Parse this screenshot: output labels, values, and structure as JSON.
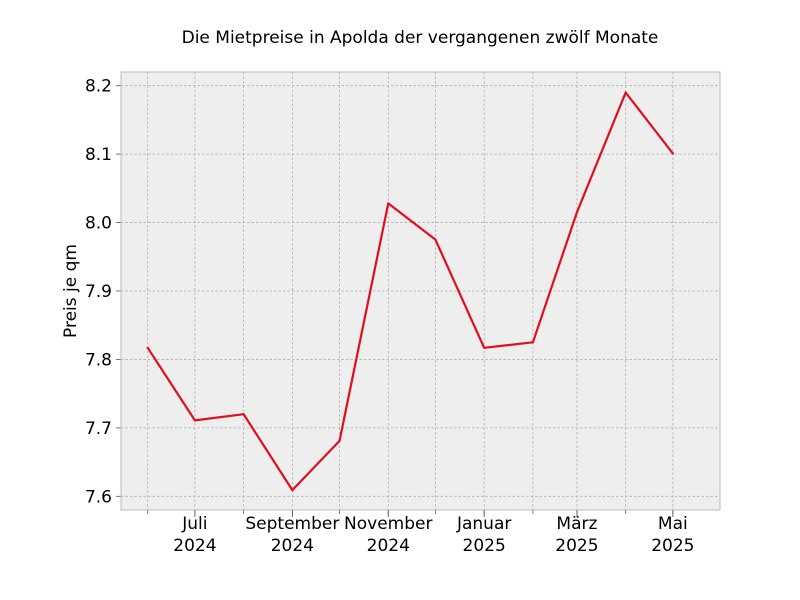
{
  "chart_data": {
    "type": "line",
    "title": "Die Mietpreise in Apolda der vergangenen zwölf Monate",
    "xlabel": "",
    "ylabel": "Preis je qm",
    "x": [
      "2024-06",
      "2024-07",
      "2024-08",
      "2024-09",
      "2024-10",
      "2024-11",
      "2024-12",
      "2025-01",
      "2025-02",
      "2025-03",
      "2025-04",
      "2025-05"
    ],
    "xlim": [
      "2024-05-15",
      "2025-05-31"
    ],
    "x_ticks": [
      {
        "month": "2024-07",
        "label": [
          "Juli",
          "2024"
        ]
      },
      {
        "month": "2024-09",
        "label": [
          "September",
          "2024"
        ]
      },
      {
        "month": "2024-11",
        "label": [
          "November",
          "2024"
        ]
      },
      {
        "month": "2025-01",
        "label": [
          "Januar",
          "2025"
        ]
      },
      {
        "month": "2025-03",
        "label": [
          "März",
          "2025"
        ]
      },
      {
        "month": "2025-05",
        "label": [
          "Mai",
          "2025"
        ]
      }
    ],
    "series": [
      {
        "values": [
          7.817,
          7.711,
          7.72,
          7.609,
          7.681,
          8.028,
          7.975,
          7.817,
          7.825,
          8.015,
          8.19,
          8.101
        ],
        "color": "#e00e1e"
      }
    ],
    "ylim": [
      7.58,
      8.22
    ],
    "yticks": [
      7.6,
      7.7,
      7.8,
      7.9,
      8.0,
      8.1,
      8.2
    ],
    "grid": true,
    "legend": "none",
    "colors": {
      "plot_background": "#eeeeee",
      "grid": "#b0b0b0",
      "frame": "#bcbcbc",
      "line": "#e00e1e"
    }
  }
}
